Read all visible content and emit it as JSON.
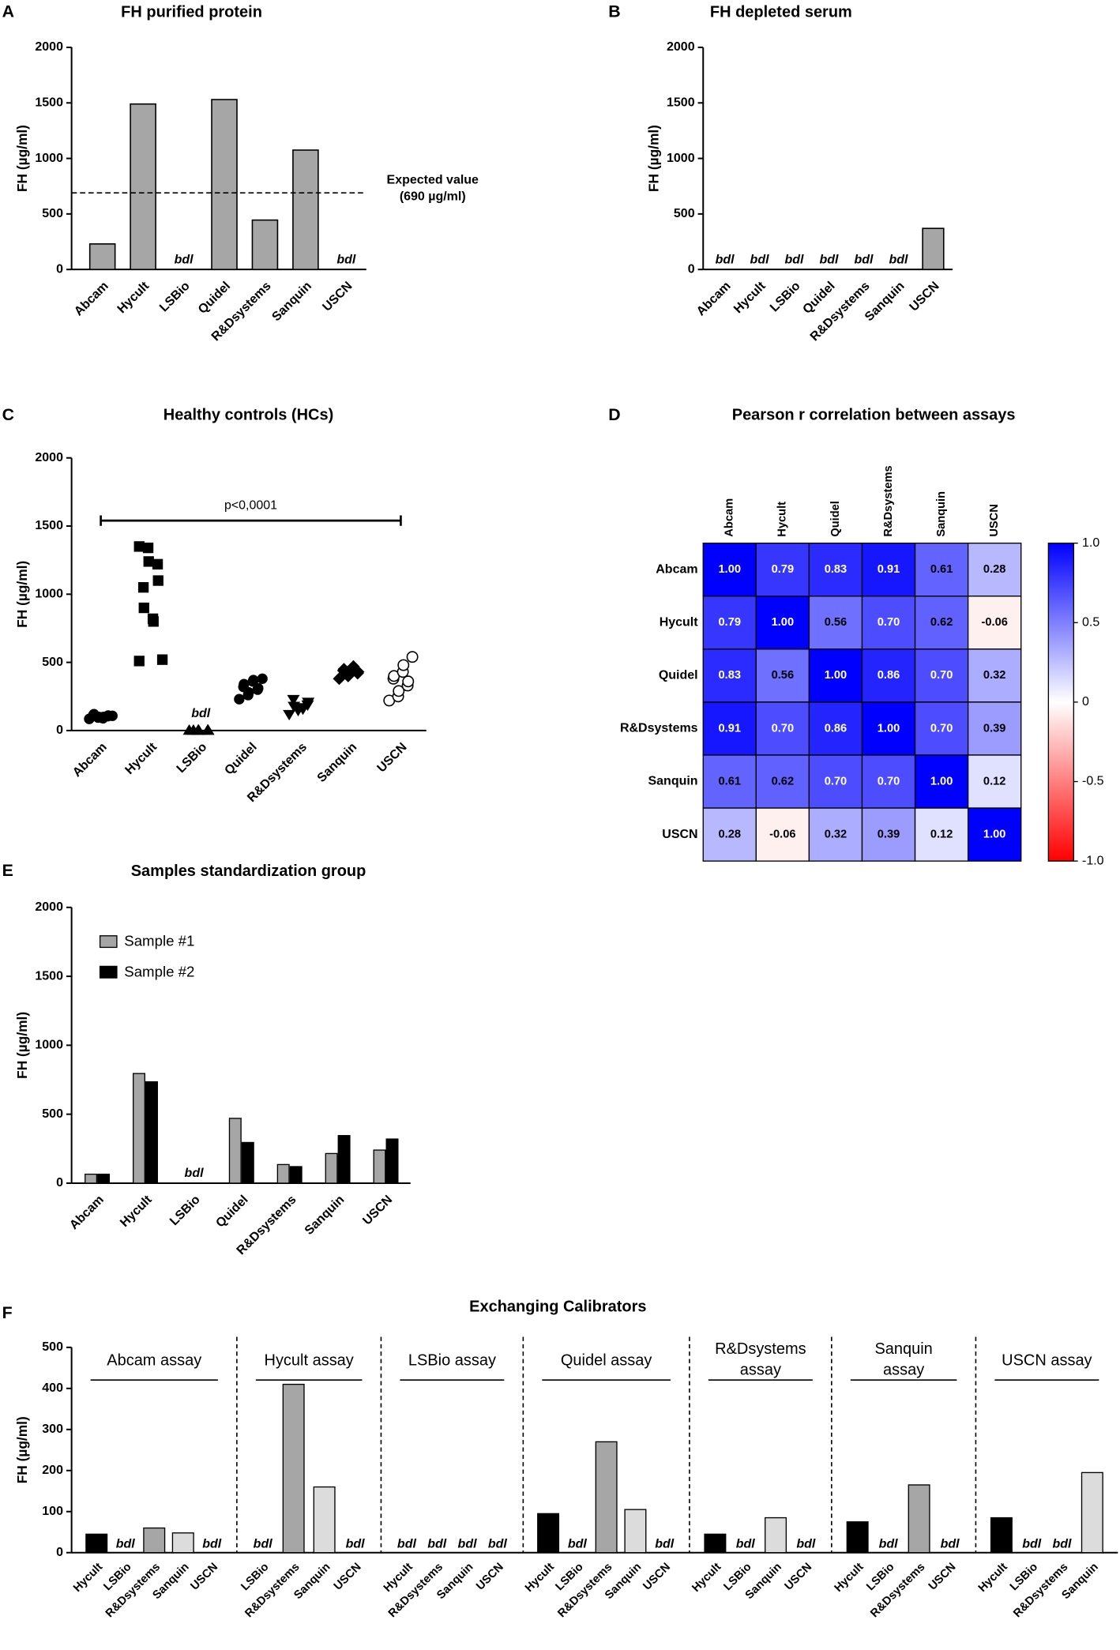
{
  "chart_data": [
    {
      "type": "bar",
      "panel": "A",
      "title": "FH purified protein",
      "ylabel": "FH (µg/ml)",
      "categories": [
        "Abcam",
        "Hycult",
        "LSBio",
        "Quidel",
        "R&Dsystems",
        "Sanquin",
        "USCN"
      ],
      "values": [
        230,
        1490,
        null,
        1530,
        445,
        1075,
        null
      ],
      "value_labels": [
        null,
        null,
        "bdl",
        null,
        null,
        null,
        "bdl"
      ],
      "color": "#a6a6a6",
      "ylim": [
        0,
        2000
      ],
      "yticks": [
        0,
        500,
        1000,
        1500,
        2000
      ],
      "reference_line": {
        "value": 690,
        "label": [
          "Expected value",
          "(690 µg/ml)"
        ]
      }
    },
    {
      "type": "bar",
      "panel": "B",
      "title": "FH depleted serum",
      "ylabel": "FH (µg/ml)",
      "categories": [
        "Abcam",
        "Hycult",
        "LSBio",
        "Quidel",
        "R&Dsystems",
        "Sanquin",
        "USCN"
      ],
      "values": [
        null,
        null,
        null,
        null,
        null,
        null,
        370
      ],
      "value_labels": [
        "bdl",
        "bdl",
        "bdl",
        "bdl",
        "bdl",
        "bdl",
        null
      ],
      "color": "#a6a6a6",
      "ylim": [
        0,
        2000
      ],
      "yticks": [
        0,
        500,
        1000,
        1500,
        2000
      ]
    },
    {
      "type": "scatter",
      "panel": "C",
      "title": "Healthy controls (HCs)",
      "ylabel": "FH (µg/ml)",
      "categories": [
        "Abcam",
        "Hycult",
        "LSBio",
        "Quidel",
        "R&Dsystems",
        "Sanquin",
        "USCN"
      ],
      "values": [
        [
          85,
          95,
          100,
          105,
          110,
          115,
          120,
          90,
          100,
          108
        ],
        [
          1350,
          1340,
          1240,
          1220,
          1100,
          1050,
          900,
          820,
          800,
          520,
          510
        ],
        [
          0,
          0,
          0,
          0,
          0,
          0
        ],
        [
          230,
          260,
          280,
          300,
          310,
          320,
          340,
          360,
          370,
          380
        ],
        [
          120,
          150,
          170,
          190,
          210,
          230,
          180,
          160
        ],
        [
          380,
          400,
          410,
          420,
          430,
          440,
          450,
          460,
          470
        ],
        [
          220,
          250,
          290,
          330,
          360,
          380,
          400,
          430,
          480,
          540
        ]
      ],
      "markers": [
        "circle",
        "square",
        "triangle",
        "circle",
        "triangle-down",
        "diamond",
        "open-circle"
      ],
      "category_notes": [
        null,
        null,
        "bdl",
        null,
        null,
        null,
        null
      ],
      "color": "#000000",
      "ylim": [
        0,
        2000
      ],
      "yticks": [
        0,
        500,
        1000,
        1500,
        2000
      ],
      "bracket": {
        "value": 1540,
        "label": "p<0,0001"
      }
    },
    {
      "type": "heatmap",
      "panel": "D",
      "title": "Pearson r correlation between assays",
      "labels": [
        "Abcam",
        "Hycult",
        "Quidel",
        "R&Dsystems",
        "Sanquin",
        "USCN"
      ],
      "values": [
        [
          1,
          0.79,
          0.83,
          0.91,
          0.61,
          0.28
        ],
        [
          0.79,
          1,
          0.56,
          0.7,
          0.62,
          -0.06
        ],
        [
          0.83,
          0.56,
          1,
          0.86,
          0.7,
          0.32
        ],
        [
          0.91,
          0.7,
          0.86,
          1,
          0.7,
          0.39
        ],
        [
          0.61,
          0.62,
          0.7,
          0.7,
          1,
          0.12
        ],
        [
          0.28,
          -0.06,
          0.32,
          0.39,
          0.12,
          1
        ]
      ],
      "value_labels": [
        [
          "1.00",
          "0.79",
          "0.83",
          "0.91",
          "0.61",
          "0.28"
        ],
        [
          "0.79",
          "1.00",
          "0.56",
          "0.70",
          "0.62",
          "-0.06"
        ],
        [
          "0.83",
          "0.56",
          "1.00",
          "0.86",
          "0.70",
          "0.32"
        ],
        [
          "0.91",
          "0.70",
          "0.86",
          "1.00",
          "0.70",
          "0.39"
        ],
        [
          "0.61",
          "0.62",
          "0.70",
          "0.70",
          "1.00",
          "0.12"
        ],
        [
          "0.28",
          "-0.06",
          "0.32",
          "0.39",
          "0.12",
          "1.00"
        ]
      ],
      "zlim": [
        -1,
        1
      ],
      "colorscale": [
        "#ff0000",
        "#ffffff",
        "#0000ff"
      ],
      "colorbar_ticks": [
        {
          "value": 1,
          "label": "1.0"
        },
        0.5,
        0,
        -0.5,
        {
          "value": -1,
          "label": "-1.0"
        }
      ]
    },
    {
      "type": "grouped_bar",
      "panel": "E",
      "title": "Samples standardization group",
      "ylabel": "FH (µg/ml)",
      "categories": [
        "Abcam",
        "Hycult",
        "LSBio",
        "Quidel",
        "R&Dsystems",
        "Sanquin",
        "USCN"
      ],
      "series": [
        {
          "name": "Sample #1",
          "color": "#a6a6a6",
          "values": [
            65,
            795,
            null,
            470,
            135,
            215,
            240
          ]
        },
        {
          "name": "Sample #2",
          "color": "#000000",
          "values": [
            65,
            735,
            null,
            295,
            120,
            345,
            320
          ]
        }
      ],
      "category_notes": [
        null,
        null,
        "bdl",
        null,
        null,
        null,
        null
      ],
      "ylim": [
        0,
        2000
      ],
      "yticks": [
        0,
        500,
        1000,
        1500,
        2000
      ],
      "legend": "top-left"
    },
    {
      "type": "faceted_bar",
      "panel": "F",
      "title": "Exchanging Calibrators",
      "ylabel": "FH (µg/ml)",
      "ylim": [
        0,
        500
      ],
      "yticks": [
        0,
        100,
        200,
        300,
        400,
        500
      ],
      "groups": [
        {
          "title": [
            "Abcam assay"
          ],
          "categories": [
            "Hycult",
            "LSBio",
            "R&Dsystems",
            "Sanquin",
            "USCN"
          ],
          "values": [
            45,
            null,
            60,
            48,
            null
          ],
          "value_labels": [
            null,
            "bdl",
            null,
            null,
            "bdl"
          ],
          "colors": [
            "#000000",
            null,
            "#a6a6a6",
            "#dcdcdc",
            null
          ]
        },
        {
          "title": [
            "Hycult assay"
          ],
          "categories": [
            "LSBio",
            "R&Dsystems",
            "Sanquin",
            "USCN"
          ],
          "values": [
            null,
            410,
            160,
            null
          ],
          "value_labels": [
            "bdl",
            null,
            null,
            "bdl"
          ],
          "colors": [
            null,
            "#a6a6a6",
            "#dcdcdc",
            null
          ]
        },
        {
          "title": [
            "LSBio assay"
          ],
          "categories": [
            "Hycult",
            "R&Dsystems",
            "Sanquin",
            "USCN"
          ],
          "values": [
            null,
            null,
            null,
            null
          ],
          "value_labels": [
            "bdl",
            "bdl",
            "bdl",
            "bdl"
          ],
          "colors": [
            null,
            null,
            null,
            null
          ]
        },
        {
          "title": [
            "Quidel assay"
          ],
          "categories": [
            "Hycult",
            "LSBio",
            "R&Dsystems",
            "Sanquin",
            "USCN"
          ],
          "values": [
            95,
            null,
            270,
            105,
            null
          ],
          "value_labels": [
            null,
            "bdl",
            null,
            null,
            "bdl"
          ],
          "colors": [
            "#000000",
            null,
            "#a6a6a6",
            "#dcdcdc",
            null
          ]
        },
        {
          "title": [
            "R&Dsystems",
            "assay"
          ],
          "categories": [
            "Hycult",
            "LSBio",
            "Sanquin",
            "USCN"
          ],
          "values": [
            45,
            null,
            85,
            null
          ],
          "value_labels": [
            null,
            "bdl",
            null,
            "bdl"
          ],
          "colors": [
            "#000000",
            null,
            "#dcdcdc",
            null
          ]
        },
        {
          "title": [
            "Sanquin",
            "assay"
          ],
          "categories": [
            "Hycult",
            "LSBio",
            "R&Dsystems",
            "USCN"
          ],
          "values": [
            75,
            null,
            165,
            null
          ],
          "value_labels": [
            null,
            "bdl",
            null,
            "bdl"
          ],
          "colors": [
            "#000000",
            null,
            "#a6a6a6",
            null
          ]
        },
        {
          "title": [
            "USCN assay"
          ],
          "categories": [
            "Hycult",
            "LSBio",
            "R&Dsystems",
            "Sanquin"
          ],
          "values": [
            85,
            null,
            null,
            195
          ],
          "value_labels": [
            null,
            "bdl",
            "bdl",
            null
          ],
          "colors": [
            "#000000",
            null,
            null,
            "#dcdcdc"
          ]
        }
      ]
    }
  ]
}
